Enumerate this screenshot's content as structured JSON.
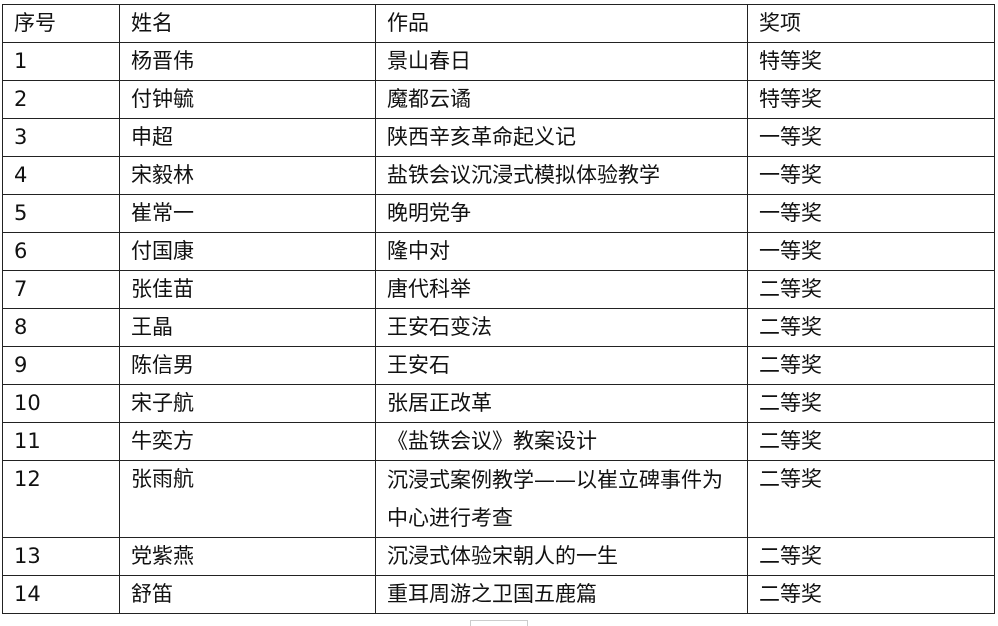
{
  "headers": [
    "序号",
    "姓名",
    "作品",
    "奖项"
  ],
  "rows": [
    [
      "1",
      "杨晋伟",
      "景山春日",
      "特等奖"
    ],
    [
      "2",
      "付钟毓",
      "魔都云谲",
      "特等奖"
    ],
    [
      "3",
      "申超",
      "陕西辛亥革命起义记",
      "一等奖"
    ],
    [
      "4",
      "宋毅林",
      "盐铁会议沉浸式模拟体验教学",
      "一等奖"
    ],
    [
      "5",
      "崔常一",
      "晚明党争",
      "一等奖"
    ],
    [
      "6",
      "付国康",
      "隆中对",
      "一等奖"
    ],
    [
      "7",
      "张佳苗",
      "唐代科举",
      "二等奖"
    ],
    [
      "8",
      "王晶",
      "王安石变法",
      "二等奖"
    ],
    [
      "9",
      "陈信男",
      "王安石",
      "二等奖"
    ],
    [
      "10",
      "宋子航",
      "张居正改革",
      "二等奖"
    ],
    [
      "11",
      "牛奕方",
      "《盐铁会议》教案设计",
      "二等奖"
    ],
    [
      "12",
      "张雨航",
      "沉浸式案例教学——以崔立碑事件为中心进行考查",
      "二等奖"
    ],
    [
      "13",
      "党紫燕",
      "沉浸式体验宋朝人的一生",
      "二等奖"
    ],
    [
      "14",
      "舒笛",
      "重耳周游之卫国五鹿篇",
      "二等奖"
    ]
  ]
}
